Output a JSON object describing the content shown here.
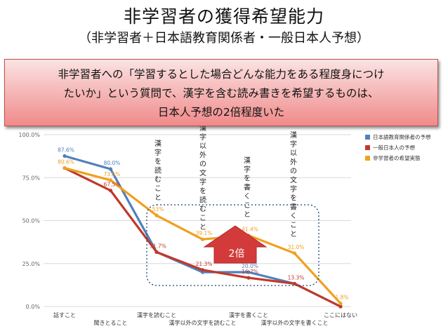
{
  "slide": {
    "title": "非学習者の獲得希望能力",
    "subtitle": "（非学習者＋日本語教育関係者・一般日本人予想）",
    "callout_lines": [
      "非学習者への「学習するとした場合どんな能力をある程度身につけ",
      "たいか」という質問で、漢字を含む読み書きを希望するものは、",
      "日本人予想の2倍程度いた"
    ],
    "arrow_label": "2倍",
    "annotations": [
      "漢字を読むこと",
      "漢字以外の文字を読むこと",
      "漢字を書くこと",
      "漢字以外の文字を書くこと"
    ]
  },
  "chart_data": {
    "type": "line",
    "categories": [
      "話すこと",
      "聞きとること",
      "漢字を読むこと",
      "漢字以外の文字を読むこと",
      "漢字を書くこと",
      "漢字以外の文字を書くこと",
      "ここにはない"
    ],
    "y_ticks": [
      "100.0%",
      "75.0%",
      "50.0%",
      "25.0%",
      "0.0%"
    ],
    "ylim": [
      0,
      100
    ],
    "legend_position": "top-right",
    "series": [
      {
        "name": "日本語教育関係者の予想",
        "color": "#4f81bd",
        "values": [
          87.6,
          80.0,
          31.7,
          20.0,
          20.0,
          13.3,
          0.0
        ],
        "labels": [
          "87.6%",
          "80.0%",
          "",
          "",
          "20.0%",
          "",
          ""
        ]
      },
      {
        "name": "一般日本人の予想",
        "color": "#c0392b",
        "values": [
          80.6,
          67.5,
          31.7,
          21.3,
          16.7,
          13.3,
          0.0
        ],
        "labels": [
          "",
          "67.5%",
          "31.7%",
          "21.3%",
          "16.7%",
          "13.3%",
          ""
        ]
      },
      {
        "name": "非学習者の希望実態",
        "color": "#f0a020",
        "values": [
          80.6,
          73.5,
          53.0,
          39.1,
          41.4,
          31.0,
          1.8
        ],
        "labels": [
          "80.6%",
          "73.5%",
          "53%",
          "39.1%",
          "41.4%",
          "31.0%",
          "1.8%"
        ]
      }
    ]
  }
}
